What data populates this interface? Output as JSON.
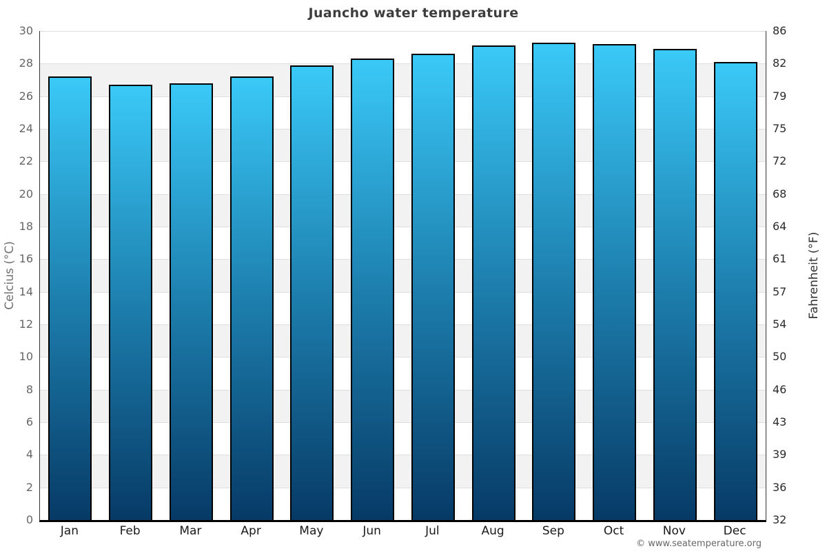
{
  "title": "Juancho water temperature",
  "footer": {
    "copyright": "© www.seatemperature.org"
  },
  "chart_data": {
    "type": "bar",
    "title": "Juancho water temperature",
    "categories": [
      "Jan",
      "Feb",
      "Mar",
      "Apr",
      "May",
      "Jun",
      "Jul",
      "Aug",
      "Sep",
      "Oct",
      "Nov",
      "Dec"
    ],
    "series": [
      {
        "name": "Water temperature",
        "unit": "°C",
        "values": [
          27.2,
          26.7,
          26.8,
          27.2,
          27.9,
          28.3,
          28.6,
          29.1,
          29.3,
          29.2,
          28.9,
          28.1
        ]
      }
    ],
    "xlabel": "",
    "ylabel_left": "Celcius (°C)",
    "ylabel_right": "Fahrenheit (°F)",
    "ylim": [
      0,
      30
    ],
    "yticks_celsius": [
      0,
      2,
      4,
      6,
      8,
      10,
      12,
      14,
      16,
      18,
      20,
      22,
      24,
      26,
      28,
      30
    ],
    "yticks_fahrenheit": [
      "32",
      "36",
      "39",
      "43",
      "46",
      "50",
      "54",
      "57",
      "61",
      "64",
      "68",
      "72",
      "75",
      "79",
      "82",
      "86"
    ],
    "grid": {
      "horizontal_bands": true,
      "band_step_celsius": 2,
      "gridlines_every_celsius": 2
    },
    "legend": "none",
    "styles": {
      "bar_gradient_top": "#3ac9f7",
      "bar_gradient_mid": "#1d7fae",
      "bar_gradient_bottom": "#073a66",
      "bar_border": "#000000",
      "band_light": "#ffffff",
      "band_shade": "#f2f2f2",
      "gridline": "#dedede",
      "tick_left_color": "#666666",
      "tick_right_color": "#2b2b2b"
    }
  }
}
